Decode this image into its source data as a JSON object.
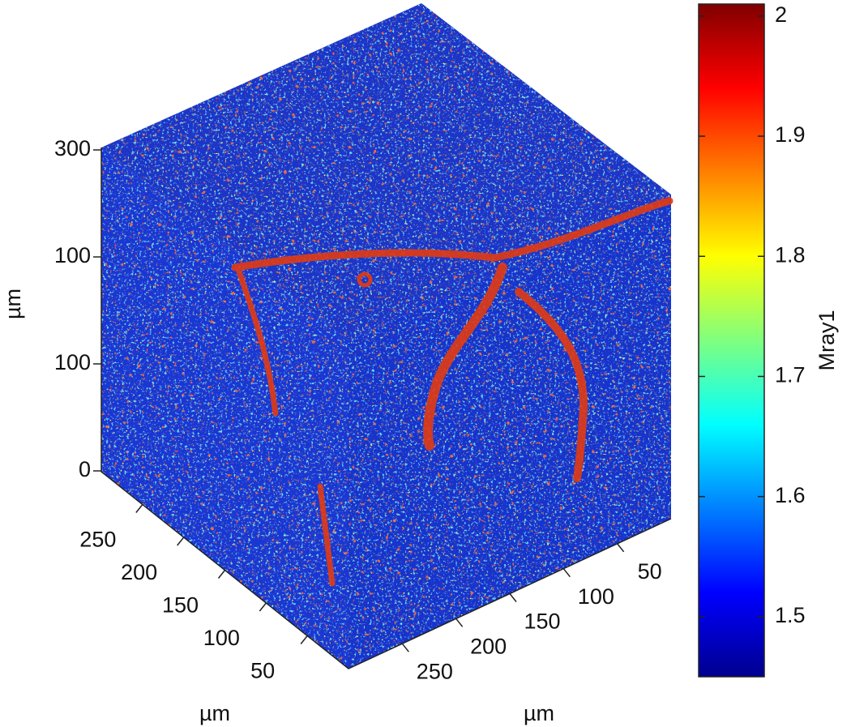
{
  "chart_data": {
    "type": "volume",
    "z_axis": {
      "label": "µm",
      "tick_labels": [
        "300",
        "100",
        "100",
        "0"
      ]
    },
    "x_axis": {
      "label": "µm",
      "xlim": [
        0,
        300
      ],
      "xticks": [
        50,
        100,
        150,
        200,
        250
      ]
    },
    "y_axis": {
      "label": "µm",
      "ylim": [
        0,
        300
      ],
      "yticks": [
        50,
        100,
        150,
        200,
        250
      ]
    },
    "colorbar": {
      "label": "Mray1",
      "colormap": "jet",
      "clim": [
        1.45,
        2.01
      ],
      "ticks": [
        1.5,
        1.6,
        1.7,
        1.8,
        1.9,
        2
      ]
    }
  }
}
